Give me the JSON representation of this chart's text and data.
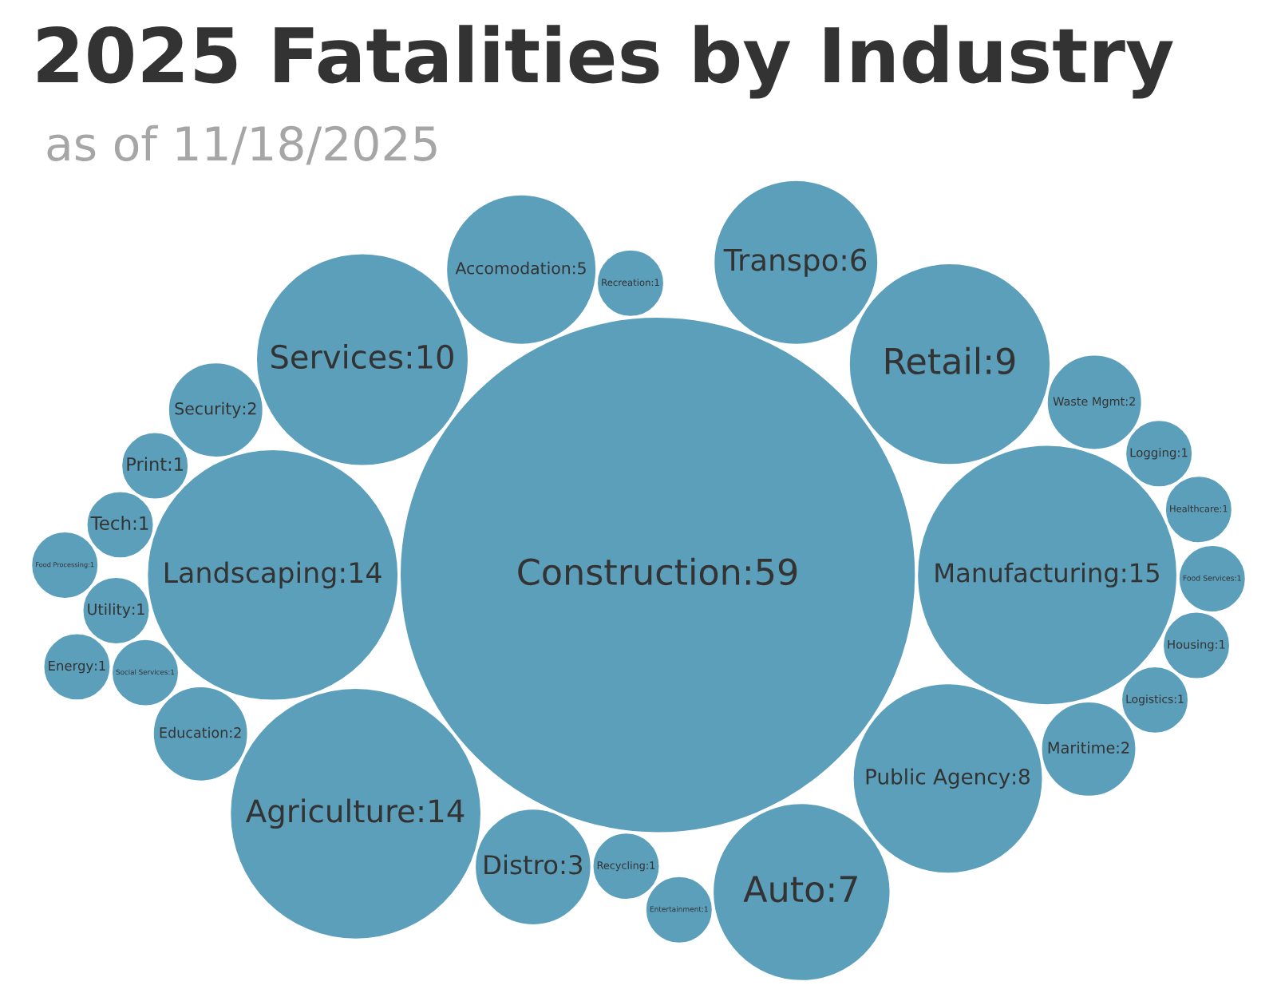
{
  "chart_data": {
    "type": "other",
    "title": "2025 Fatalities by Industry",
    "subtitle": "as of 11/18/2025",
    "color": "#5b9fbb",
    "categories": [
      "Construction",
      "Manufacturing",
      "Landscaping",
      "Agriculture",
      "Services",
      "Retail",
      "Public Agency",
      "Auto",
      "Transpo",
      "Accomodation",
      "Distro",
      "Security",
      "Maritime",
      "Waste Mgmt",
      "Education",
      "Recycling",
      "Recreation",
      "Print",
      "Social Services",
      "Tech",
      "Utility",
      "Logistics",
      "Logging",
      "Housing",
      "Healthcare",
      "Food Services",
      "Food Processing",
      "Entertainment",
      "Energy"
    ],
    "values": [
      59,
      15,
      14,
      14,
      10,
      9,
      8,
      7,
      6,
      5,
      3,
      2,
      2,
      2,
      2,
      1,
      1,
      1,
      1,
      1,
      1,
      1,
      1,
      1,
      1,
      1,
      1,
      1,
      1
    ],
    "value_labels": [
      ":59",
      ":15",
      ":14",
      ":14",
      ":10",
      ":9",
      ":8",
      ":7",
      ":6",
      ":5",
      ":3",
      ":2",
      ":2",
      ":2",
      ":2",
      ":1",
      ":1",
      ":1",
      ":1",
      ":1",
      ":1",
      ":1",
      ":1",
      ":1",
      ":1",
      ":1",
      ":1",
      ":1",
      ":1"
    ]
  }
}
